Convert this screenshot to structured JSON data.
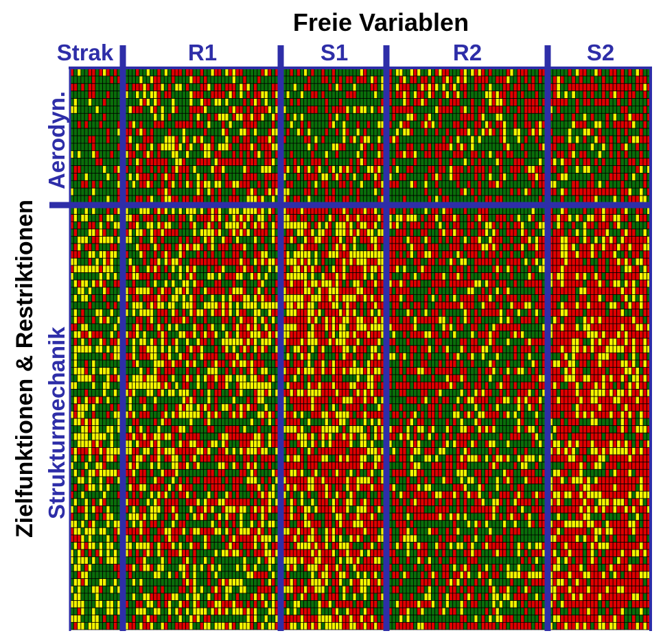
{
  "chart_data": {
    "type": "heatmap",
    "title": "Freie Variablen",
    "ylabel": "Zielfunktionen & Restriktionen",
    "column_groups": [
      {
        "name": "Strak",
        "columns": 14
      },
      {
        "name": "R1",
        "columns": 43
      },
      {
        "name": "S1",
        "columns": 29
      },
      {
        "name": "R2",
        "columns": 44
      },
      {
        "name": "S2",
        "columns": 27
      }
    ],
    "row_groups": [
      {
        "name": "Aerodyn.",
        "rows": 18
      },
      {
        "name": "Strukturmechanik",
        "rows": 58
      }
    ],
    "categories": [
      "green",
      "yellow",
      "red"
    ],
    "colors": {
      "green": "#0a6e0a",
      "yellow": "#f5f500",
      "red": "#e00000",
      "cell_border": "#000000",
      "divider": "#2e2ea8"
    },
    "cells": "not individually legible; rendered as a procedurally generated pattern of green, yellow and red cells"
  }
}
